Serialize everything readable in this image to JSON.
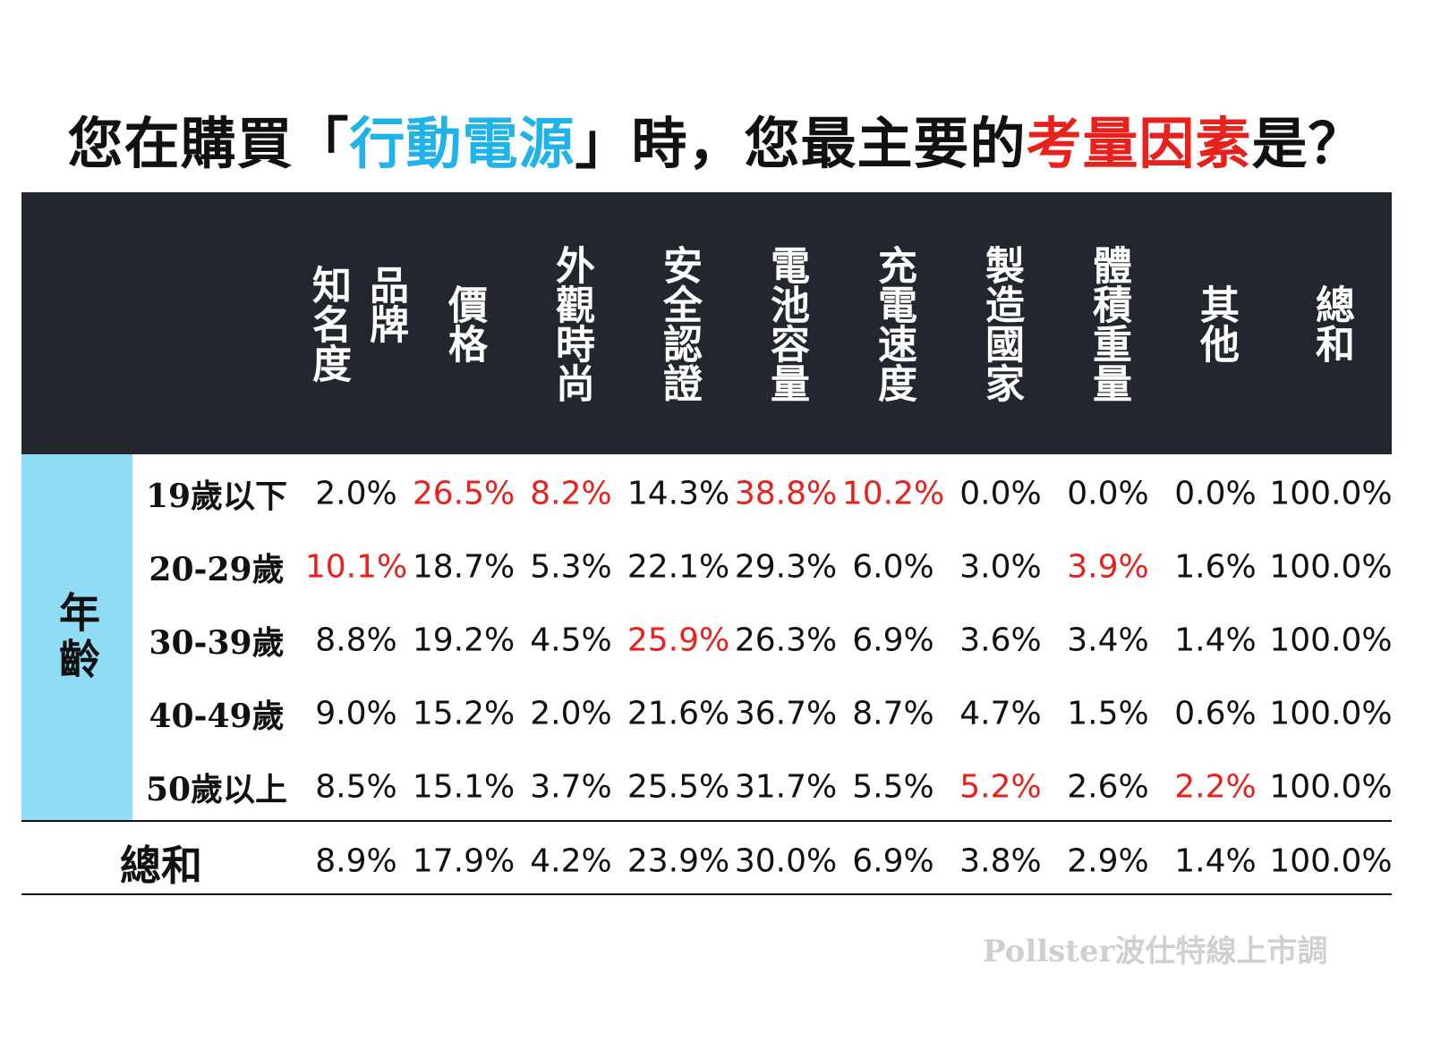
{
  "title": {
    "parts": [
      {
        "text": "您在購買「",
        "color": "#111111"
      },
      {
        "text": "行動電源",
        "color": "#1fb3ea"
      },
      {
        "text": "」時，您最主要的",
        "color": "#111111"
      },
      {
        "text": "考量因素",
        "color": "#e8211d"
      },
      {
        "text": "是？",
        "color": "#111111"
      }
    ]
  },
  "table": {
    "columns": [
      [
        "品牌",
        "知名度"
      ],
      [
        "價格"
      ],
      [
        "外觀時尚"
      ],
      [
        "安全認證"
      ],
      [
        "電池容量"
      ],
      [
        "充電速度"
      ],
      [
        "製造國家"
      ],
      [
        "體積重量"
      ],
      [
        "其他"
      ],
      [
        "總和"
      ]
    ],
    "group_label": "年齡",
    "highlight_color": "#e8211d",
    "rows": [
      {
        "label": "19歲以下",
        "cells": [
          "2.0%",
          "26.5%",
          "8.2%",
          "14.3%",
          "38.8%",
          "10.2%",
          "0.0%",
          "0.0%",
          "0.0%",
          "100.0%"
        ],
        "highlighted": [
          1,
          2,
          4,
          5
        ]
      },
      {
        "label": "20-29歲",
        "cells": [
          "10.1%",
          "18.7%",
          "5.3%",
          "22.1%",
          "29.3%",
          "6.0%",
          "3.0%",
          "3.9%",
          "1.6%",
          "100.0%"
        ],
        "highlighted": [
          0,
          7
        ]
      },
      {
        "label": "30-39歲",
        "cells": [
          "8.8%",
          "19.2%",
          "4.5%",
          "25.9%",
          "26.3%",
          "6.9%",
          "3.6%",
          "3.4%",
          "1.4%",
          "100.0%"
        ],
        "highlighted": [
          3
        ]
      },
      {
        "label": "40-49歲",
        "cells": [
          "9.0%",
          "15.2%",
          "2.0%",
          "21.6%",
          "36.7%",
          "8.7%",
          "4.7%",
          "1.5%",
          "0.6%",
          "100.0%"
        ],
        "highlighted": []
      },
      {
        "label": "50歲以上",
        "cells": [
          "8.5%",
          "15.1%",
          "3.7%",
          "25.5%",
          "31.7%",
          "5.5%",
          "5.2%",
          "2.6%",
          "2.2%",
          "100.0%"
        ],
        "highlighted": [
          6,
          8
        ]
      }
    ],
    "total": {
      "label": "總和",
      "cells": [
        "8.9%",
        "17.9%",
        "4.2%",
        "23.9%",
        "30.0%",
        "6.9%",
        "3.8%",
        "2.9%",
        "1.4%",
        "100.0%"
      ]
    }
  },
  "watermark": "Pollster波仕特線上市調"
}
